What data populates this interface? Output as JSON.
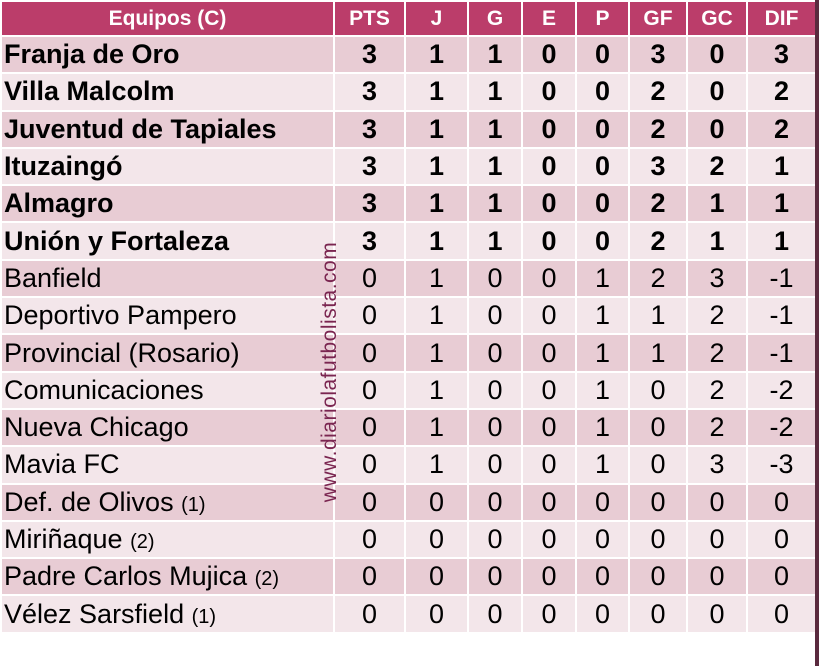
{
  "headers": [
    "Equipos (C)",
    "PTS",
    "J",
    "G",
    "E",
    "P",
    "GF",
    "GC",
    "DIF"
  ],
  "rows": [
    {
      "team": "Franja de Oro",
      "note": "",
      "bold": true,
      "stats": [
        "3",
        "1",
        "1",
        "0",
        "0",
        "3",
        "0",
        "3"
      ]
    },
    {
      "team": "Villa Malcolm",
      "note": "",
      "bold": true,
      "stats": [
        "3",
        "1",
        "1",
        "0",
        "0",
        "2",
        "0",
        "2"
      ]
    },
    {
      "team": "Juventud de Tapiales",
      "note": "",
      "bold": true,
      "stats": [
        "3",
        "1",
        "1",
        "0",
        "0",
        "2",
        "0",
        "2"
      ]
    },
    {
      "team": "Ituzaingó",
      "note": "",
      "bold": true,
      "stats": [
        "3",
        "1",
        "1",
        "0",
        "0",
        "3",
        "2",
        "1"
      ]
    },
    {
      "team": "Almagro",
      "note": "",
      "bold": true,
      "stats": [
        "3",
        "1",
        "1",
        "0",
        "0",
        "2",
        "1",
        "1"
      ]
    },
    {
      "team": "Unión y Fortaleza",
      "note": "",
      "bold": true,
      "stats": [
        "3",
        "1",
        "1",
        "0",
        "0",
        "2",
        "1",
        "1"
      ]
    },
    {
      "team": "Banfield",
      "note": "",
      "bold": false,
      "stats": [
        "0",
        "1",
        "0",
        "0",
        "1",
        "2",
        "3",
        "-1"
      ]
    },
    {
      "team": "Deportivo Pampero",
      "note": "",
      "bold": false,
      "stats": [
        "0",
        "1",
        "0",
        "0",
        "1",
        "1",
        "2",
        "-1"
      ]
    },
    {
      "team": "Provincial (Rosario)",
      "note": "",
      "bold": false,
      "stats": [
        "0",
        "1",
        "0",
        "0",
        "1",
        "1",
        "2",
        "-1"
      ]
    },
    {
      "team": "Comunicaciones",
      "note": "",
      "bold": false,
      "stats": [
        "0",
        "1",
        "0",
        "0",
        "1",
        "0",
        "2",
        "-2"
      ]
    },
    {
      "team": "Nueva Chicago",
      "note": "",
      "bold": false,
      "stats": [
        "0",
        "1",
        "0",
        "0",
        "1",
        "0",
        "2",
        "-2"
      ]
    },
    {
      "team": "Mavia FC",
      "note": "",
      "bold": false,
      "stats": [
        "0",
        "1",
        "0",
        "0",
        "1",
        "0",
        "3",
        "-3"
      ]
    },
    {
      "team": "Def. de Olivos",
      "note": "(1)",
      "bold": false,
      "stats": [
        "0",
        "0",
        "0",
        "0",
        "0",
        "0",
        "0",
        "0"
      ]
    },
    {
      "team": "Miriñaque",
      "note": "(2)",
      "bold": false,
      "stats": [
        "0",
        "0",
        "0",
        "0",
        "0",
        "0",
        "0",
        "0"
      ]
    },
    {
      "team": "Padre Carlos Mujica",
      "note": "(2)",
      "bold": false,
      "stats": [
        "0",
        "0",
        "0",
        "0",
        "0",
        "0",
        "0",
        "0"
      ]
    },
    {
      "team": "Vélez Sarsfield",
      "note": "(1)",
      "bold": false,
      "stats": [
        "0",
        "0",
        "0",
        "0",
        "0",
        "0",
        "0",
        "0"
      ]
    }
  ],
  "watermark": "www.diariolafutbolista.com",
  "colors": {
    "header": "#bb3d6a",
    "row_odd": "#e8ccd4",
    "row_even": "#f3e6ea"
  }
}
